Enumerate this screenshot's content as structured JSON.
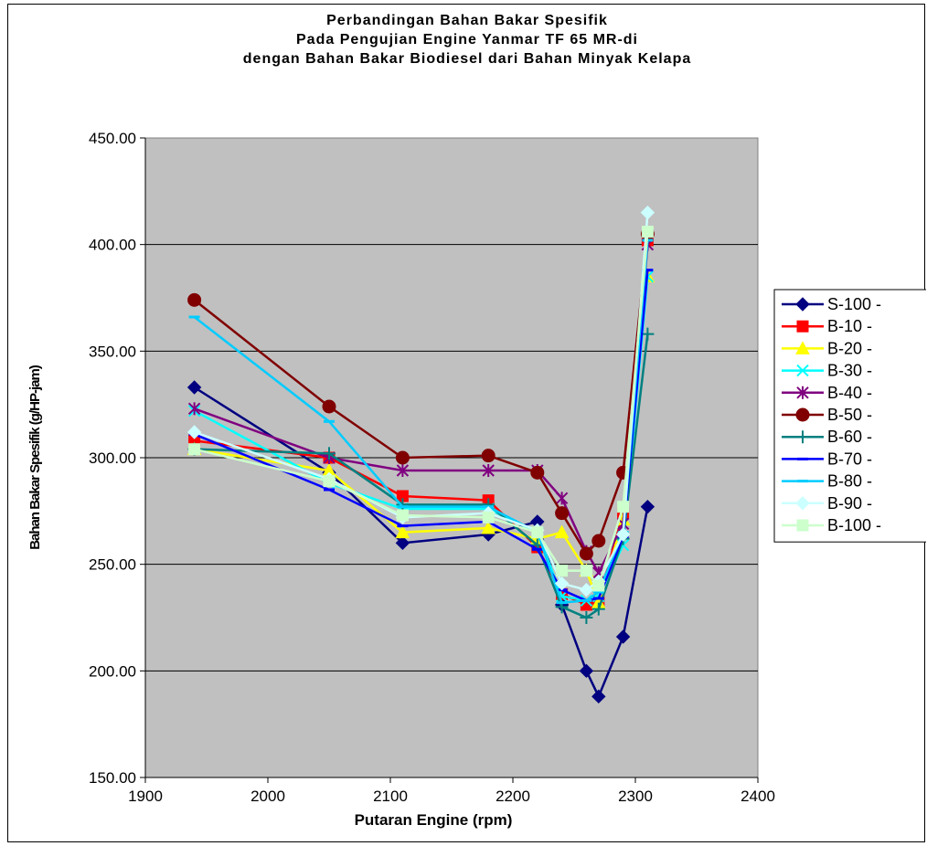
{
  "chart_data": {
    "type": "line",
    "title_lines": [
      "Perbandingan Bahan Bakar Spesifik",
      "Pada Pengujian Engine Yanmar TF 65 MR-di",
      "dengan Bahan Bakar Biodiesel dari Bahan Minyak Kelapa"
    ],
    "xlabel": "Putaran Engine (rpm)",
    "ylabel": "Bahan Bakar Spesifik (g/HP-jam)",
    "xlim": [
      1900,
      2400
    ],
    "ylim": [
      150,
      450
    ],
    "x_ticks": [
      "1900",
      "2000",
      "2100",
      "2200",
      "2300",
      "2400"
    ],
    "y_ticks": [
      "150.00",
      "200.00",
      "250.00",
      "300.00",
      "350.00",
      "400.00",
      "450.00"
    ],
    "plot_background": "#c0c0c0",
    "grid": "horizontal",
    "legend_position": "right",
    "x": [
      1940,
      2050,
      2110,
      2180,
      2220,
      2240,
      2260,
      2270,
      2290,
      2310
    ],
    "series": [
      {
        "name": "S-100 -",
        "color": "#000080",
        "marker": "diamond",
        "values": [
          333,
          293,
          260,
          264,
          270,
          231,
          200,
          188,
          216,
          277
        ]
      },
      {
        "name": "B-10 -",
        "color": "#ff0000",
        "marker": "square",
        "values": [
          308,
          300,
          282,
          280,
          258,
          236,
          231,
          233,
          274,
          402
        ]
      },
      {
        "name": "B-20 -",
        "color": "#ffff00",
        "marker": "triangle",
        "values": [
          304,
          294,
          265,
          267,
          262,
          265,
          247,
          232,
          271,
          385
        ]
      },
      {
        "name": "B-30 -",
        "color": "#00ffff",
        "marker": "x",
        "values": [
          322,
          288,
          276,
          276,
          265,
          235,
          233,
          235,
          259,
          385
        ]
      },
      {
        "name": "B-40 -",
        "color": "#800080",
        "marker": "star",
        "values": [
          323,
          300,
          294,
          294,
          294,
          281,
          256,
          246,
          269,
          400
        ]
      },
      {
        "name": "B-50 -",
        "color": "#800000",
        "marker": "circle",
        "values": [
          374,
          324,
          300,
          301,
          293,
          274,
          255,
          261,
          293,
          405
        ]
      },
      {
        "name": "B-60 -",
        "color": "#008080",
        "marker": "plus",
        "values": [
          304,
          302,
          278,
          278,
          259,
          230,
          225,
          229,
          262,
          358
        ]
      },
      {
        "name": "B-70 -",
        "color": "#0000ff",
        "marker": "dash",
        "values": [
          311,
          285,
          268,
          270,
          257,
          238,
          233,
          234,
          263,
          388
        ]
      },
      {
        "name": "B-80 -",
        "color": "#00ccff",
        "marker": "dash",
        "values": [
          366,
          317,
          277,
          277,
          265,
          232,
          233,
          237,
          265,
          402
        ]
      },
      {
        "name": "B-90 -",
        "color": "#ccffff",
        "marker": "diamond",
        "values": [
          312,
          290,
          272,
          274,
          266,
          241,
          238,
          242,
          264,
          415
        ]
      },
      {
        "name": "B-100 -",
        "color": "#ccffcc",
        "marker": "square",
        "values": [
          304,
          289,
          273,
          272,
          265,
          247,
          247,
          240,
          277,
          406
        ]
      }
    ]
  }
}
